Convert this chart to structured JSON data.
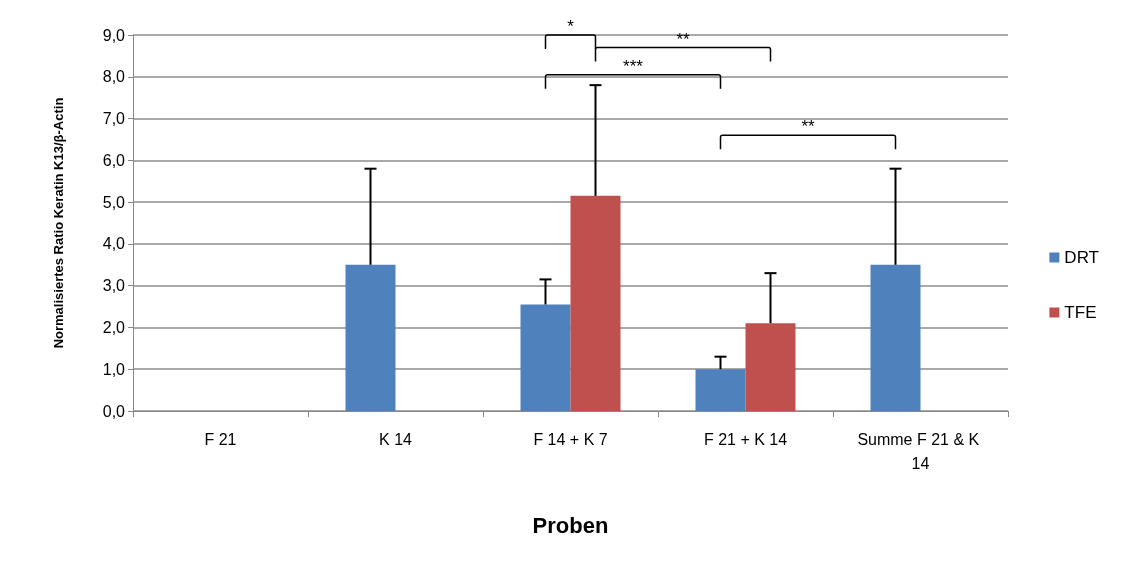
{
  "chart_data": {
    "type": "bar",
    "xlabel": "Proben",
    "ylabel": "Normalisiertes Ratio Keratin K13/β-Actin",
    "categories": [
      "F 21",
      "K 14",
      "F 14 + K 7",
      "F 21 + K 14",
      "Summe F 21 & K 14"
    ],
    "series": [
      {
        "name": "DRT",
        "color": "#4f81bd",
        "values": [
          0,
          3.5,
          2.55,
          1.0,
          3.5
        ],
        "errors": [
          null,
          2.3,
          0.6,
          0.3,
          2.3
        ]
      },
      {
        "name": "TFE",
        "color": "#c0504d",
        "values": [
          0,
          0,
          5.15,
          2.1,
          null
        ],
        "errors": [
          null,
          null,
          2.65,
          1.2,
          null
        ]
      }
    ],
    "ylim": [
      0,
      9
    ],
    "yticks": [
      {
        "value": 0,
        "label": "0,0"
      },
      {
        "value": 1,
        "label": "1,0"
      },
      {
        "value": 2,
        "label": "2,0"
      },
      {
        "value": 3,
        "label": "3,0"
      },
      {
        "value": 4,
        "label": "4,0"
      },
      {
        "value": 5,
        "label": "5,0"
      },
      {
        "value": 6,
        "label": "6,0"
      },
      {
        "value": 7,
        "label": "7,0"
      },
      {
        "value": 8,
        "label": "8,0"
      },
      {
        "value": 9,
        "label": "9,0"
      }
    ],
    "annotations": [
      "*",
      "**",
      "***",
      "**"
    ],
    "grid": "y",
    "legend": "right"
  }
}
